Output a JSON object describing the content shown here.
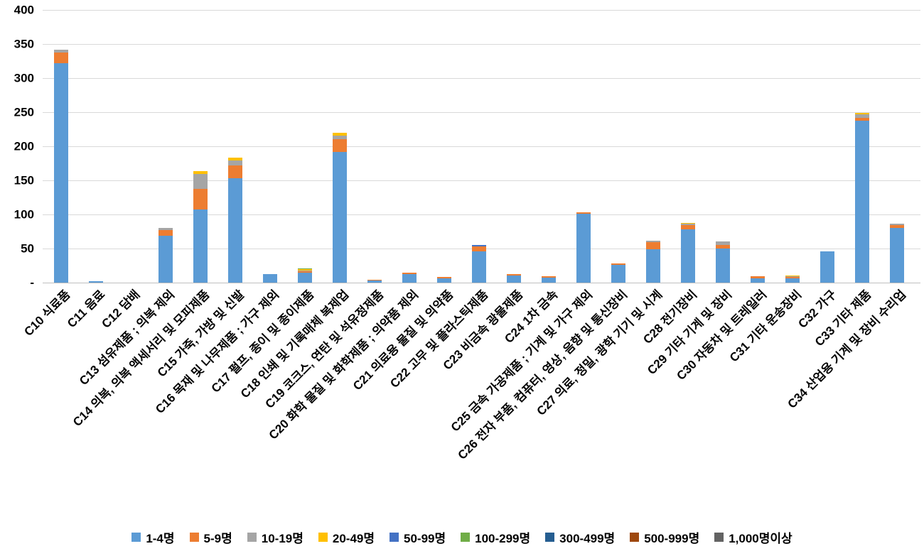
{
  "y_axis": {
    "min": 0,
    "max": 400,
    "step": 50,
    "tick_labels": [
      "-",
      "50",
      "100",
      "150",
      "200",
      "250",
      "300",
      "350",
      "400"
    ]
  },
  "legend": {
    "position": "bottom",
    "items": [
      {
        "label": "1-4명",
        "color": "#5B9BD5"
      },
      {
        "label": "5-9명",
        "color": "#ED7D31"
      },
      {
        "label": "10-19명",
        "color": "#A5A5A5"
      },
      {
        "label": "20-49명",
        "color": "#FFC000"
      },
      {
        "label": "50-99명",
        "color": "#4472C4"
      },
      {
        "label": "100-299명",
        "color": "#70AD47"
      },
      {
        "label": "300-499명",
        "color": "#255E91"
      },
      {
        "label": "500-999명",
        "color": "#9E480E"
      },
      {
        "label": "1,000명이상",
        "color": "#636363"
      }
    ]
  },
  "chart_data": {
    "type": "bar",
    "stacked": true,
    "grid": true,
    "legend_position": "bottom",
    "title": "",
    "xlabel": "",
    "ylabel": "",
    "ylim": [
      0,
      400
    ],
    "ytick_step": 50,
    "categories": [
      "C10 식료품",
      "C11 음료",
      "C12 담배",
      "C13 섬유제품 ; 의복 제외",
      "C14 의복, 의복 액세서리 및 모피제품",
      "C15 가죽, 가방 및 신발",
      "C16 목재 및 나무제품 ; 가구 제외",
      "C17 펄프, 종이 및 종이제품",
      "C18 인쇄 및 기록매체 복제업",
      "C19 코크스, 연탄 및 석유정제품",
      "C20 화학 물질 및 화학제품 ; 의약품 제외",
      "C21 의료용 물질 및 의약품",
      "C22 고무 및 플라스틱제품",
      "C23 비금속 광물제품",
      "C24 1차 금속",
      "C25 금속 가공제품 ; 기계 및 가구 제외",
      "C26 전자 부품, 컴퓨터, 영상, 음향 및 통신장비",
      "C27 의료, 정밀, 광학 기기 및 시계",
      "C28 전기장비",
      "C29 기타 기계 및 장비",
      "C30 자동차 및 트레일러",
      "C31 기타 운송장비",
      "C32 가구",
      "C33 기타 제품",
      "C34 산업용 기계 및 장비 수리업"
    ],
    "series": [
      {
        "name": "1-4명",
        "color": "#5B9BD5",
        "values": [
          322,
          2,
          0,
          69,
          107,
          153,
          12,
          15,
          192,
          3,
          13,
          6,
          46,
          10,
          7,
          101,
          26,
          49,
          78,
          50,
          6,
          6,
          46,
          237,
          80
        ]
      },
      {
        "name": "5-9명",
        "color": "#ED7D31",
        "values": [
          15,
          0,
          0,
          8,
          31,
          19,
          0,
          2,
          18,
          1,
          2,
          2,
          7,
          3,
          2,
          2,
          2,
          10,
          6,
          5,
          3,
          2,
          0,
          5,
          4
        ]
      },
      {
        "name": "10-19명",
        "color": "#A5A5A5",
        "values": [
          5,
          0,
          0,
          3,
          21,
          7,
          0,
          1,
          6,
          0,
          0,
          0,
          0,
          0,
          0,
          0,
          0,
          2,
          3,
          5,
          0,
          1,
          0,
          5,
          2
        ]
      },
      {
        "name": "20-49명",
        "color": "#FFC000",
        "values": [
          0,
          0,
          0,
          0,
          5,
          4,
          0,
          2,
          4,
          0,
          0,
          0,
          0,
          0,
          0,
          0,
          0,
          0,
          1,
          0,
          0,
          1,
          0,
          2,
          0
        ]
      },
      {
        "name": "50-99명",
        "color": "#4472C4",
        "values": [
          0,
          0,
          0,
          0,
          0,
          0,
          0,
          0,
          0,
          0,
          0,
          0,
          2,
          0,
          0,
          0,
          0,
          0,
          0,
          0,
          0,
          0,
          0,
          0,
          0
        ]
      },
      {
        "name": "100-299명",
        "color": "#70AD47",
        "values": [
          0,
          0,
          0,
          0,
          0,
          0,
          0,
          1,
          0,
          0,
          0,
          0,
          0,
          0,
          0,
          0,
          0,
          0,
          0,
          0,
          0,
          0,
          0,
          0,
          0
        ]
      },
      {
        "name": "300-499명",
        "color": "#255E91",
        "values": [
          0,
          0,
          0,
          0,
          0,
          0,
          0,
          0,
          0,
          0,
          0,
          0,
          0,
          0,
          0,
          0,
          0,
          0,
          0,
          0,
          0,
          0,
          0,
          0,
          0
        ]
      },
      {
        "name": "500-999명",
        "color": "#9E480E",
        "values": [
          0,
          0,
          0,
          0,
          0,
          0,
          0,
          0,
          0,
          0,
          0,
          0,
          0,
          0,
          0,
          0,
          0,
          0,
          0,
          0,
          0,
          0,
          0,
          0,
          0
        ]
      },
      {
        "name": "1,000명이상",
        "color": "#636363",
        "values": [
          0,
          0,
          0,
          0,
          0,
          0,
          0,
          0,
          0,
          0,
          0,
          0,
          0,
          0,
          0,
          0,
          0,
          0,
          0,
          0,
          0,
          0,
          0,
          0,
          0
        ]
      }
    ]
  }
}
